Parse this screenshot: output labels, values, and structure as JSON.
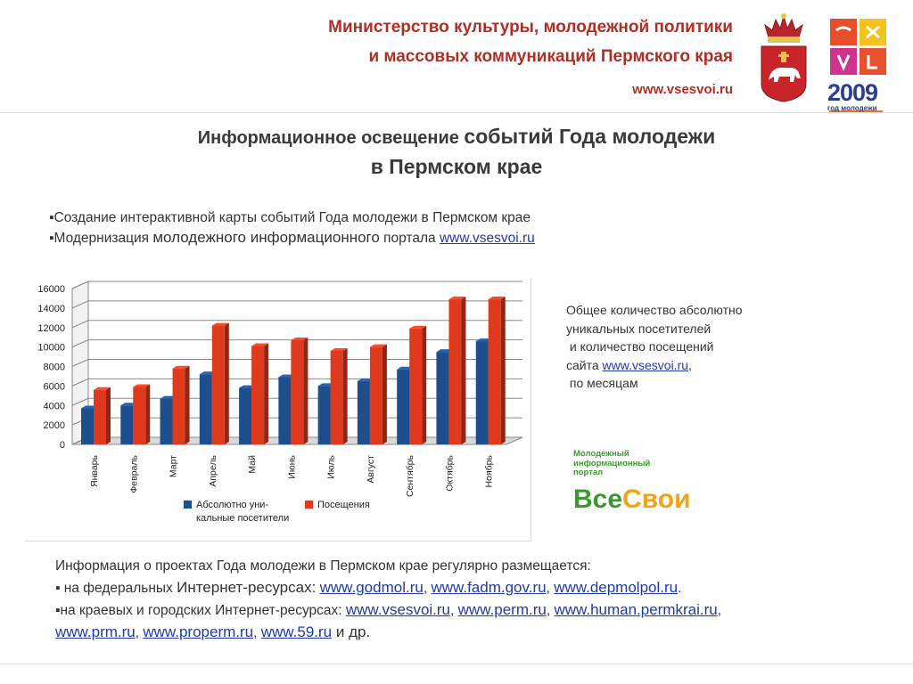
{
  "header": {
    "org_line1": "Министерство культуры, молодежной политики",
    "org_line2": "и массовых коммуникаций Пермского края",
    "site": "www.vsesvoi.ru",
    "badge_year": "2009",
    "badge_caption": "год молодежи"
  },
  "title": {
    "line1_a": "Информационное освещение ",
    "line1_b": "событий Года молодежи",
    "line2": "в Пермском крае"
  },
  "bullets": {
    "item1": "Создание интерактивной карты событий Года молодежи в Пермском крае",
    "item2_a": "Модернизация ",
    "item2_b": "молодежного информационного",
    "item2_c": " портала ",
    "item2_link": "www.vsesvoi.ru"
  },
  "side_text": {
    "line1": "Общее количество абсолютно",
    "line2": "уникальных посетителей",
    "line3": " и количество посещений",
    "line4_a": "сайта ",
    "line4_link": "www.vsesvoi.ru",
    "line4_b": ",",
    "line5": " по месяцам"
  },
  "portal_logo": {
    "caption_line1": "Молодежный",
    "caption_line2": "информационный",
    "caption_line3": "портал",
    "word_a": "Все",
    "word_b": "Свои",
    "color_a": "#3a9a2e",
    "color_b": "#f0a318"
  },
  "chart_data": {
    "type": "bar",
    "categories": [
      "Январь",
      "Февраль",
      "Март",
      "Апрель",
      "Май",
      "Июнь",
      "Июль",
      "Август",
      "Сентябрь",
      "Октябрь",
      "Ноябрь"
    ],
    "series": [
      {
        "name": "Абсолютно уни-кальные посетители",
        "legend_line1": "Абсолютно уни-",
        "legend_line2": "кальные посетители",
        "color": "#1f4e8c",
        "values": [
          3700,
          4000,
          4700,
          7200,
          5800,
          6900,
          6000,
          6500,
          7700,
          9500,
          10600
        ]
      },
      {
        "name": "Посещения",
        "color": "#e03a1e",
        "values": [
          5600,
          5900,
          7800,
          12200,
          10100,
          10700,
          9600,
          10000,
          11900,
          14900,
          14900
        ]
      }
    ],
    "yticks": [
      "0",
      "2000",
      "4000",
      "6000",
      "8000",
      "10000",
      "12000",
      "14000",
      "16000"
    ],
    "ylim": [
      0,
      16000
    ],
    "grid": true,
    "legend_position": "bottom"
  },
  "footer": {
    "intro": "Информация о проектах Года молодежи в Пермском крае регулярно размещается:",
    "fed_a": "▪ на федеральных ",
    "fed_b": "Интернет-ресурсах:",
    "fed_links": [
      "www.godmol.ru",
      "www.fadm.gov.ru",
      "www.depmolpol.ru"
    ],
    "reg_a": "▪на краевых и городских ",
    "reg_b": "Интернет-ресурсах:",
    "reg_links": [
      "www.vsesvoi.ru",
      "www.perm.ru",
      "www.human.permkrai.ru"
    ],
    "reg_links2": [
      "www.prm.ru",
      "www.properm.ru",
      "www.59.ru"
    ],
    "tail": " и др."
  }
}
